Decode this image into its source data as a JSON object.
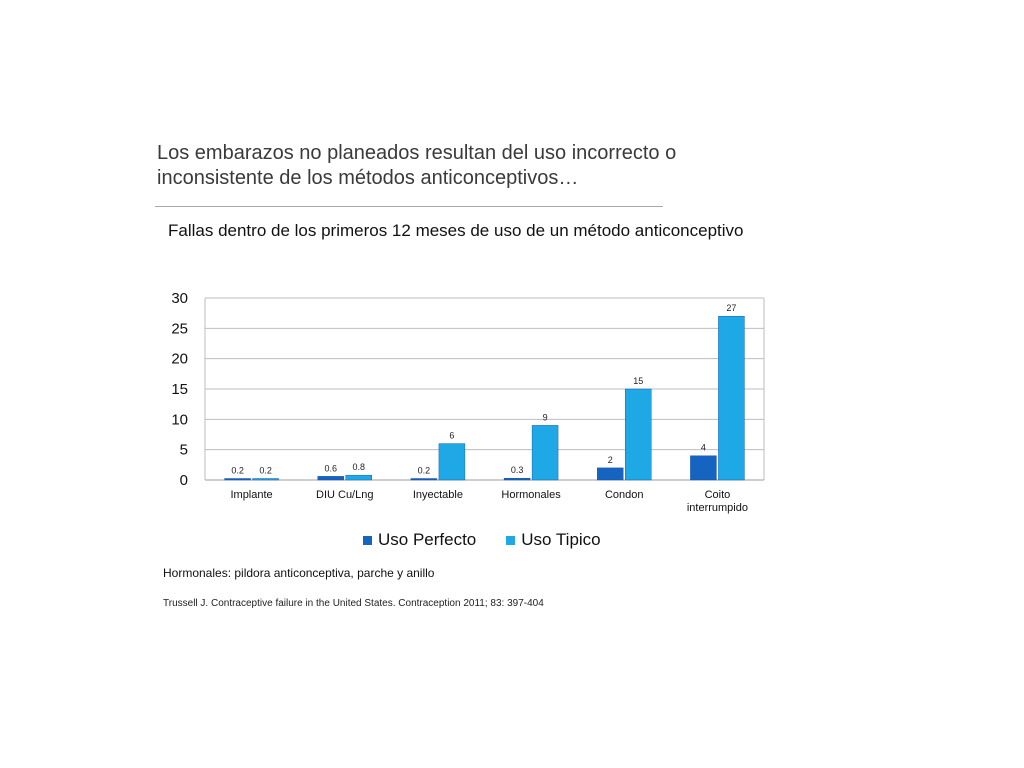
{
  "slide": {
    "heading_line1": "Los embarazos no planeados resultan del uso incorrecto o",
    "heading_line2": "inconsistente de  los métodos anticonceptivos…",
    "note": "Hormonales: pildora anticonceptiva, parche y anillo",
    "citation": "Trussell J. Contraceptive failure in the United States. Contraception 2011; 83: 397-404"
  },
  "chart_data": {
    "type": "bar",
    "title": "Fallas dentro de los primeros 12 meses de uso de un método anticonceptivo",
    "categories": [
      [
        "Implante"
      ],
      [
        "DIU Cu/Lng"
      ],
      [
        "Inyectable"
      ],
      [
        "Hormonales"
      ],
      [
        "Condon"
      ],
      [
        "Coito",
        "interrumpido"
      ]
    ],
    "series": [
      {
        "name": "Uso Perfecto",
        "color": "#1565c0",
        "values": [
          0.2,
          0.6,
          0.2,
          0.3,
          2,
          4
        ],
        "labels": [
          "0.2",
          "0.6",
          "0.2",
          "0.3",
          "2",
          "4"
        ]
      },
      {
        "name": "Uso Tipico",
        "color": "#1ea9e6",
        "values": [
          0.2,
          0.8,
          6,
          9,
          15,
          27
        ],
        "labels": [
          "0.2",
          "0.8",
          "6",
          "9",
          "15",
          "27"
        ]
      }
    ],
    "ylim": [
      0,
      30
    ],
    "yticks": [
      0,
      5,
      10,
      15,
      20,
      25,
      30
    ],
    "xlabel": "",
    "ylabel": "",
    "grid": true,
    "legend_position": "bottom"
  }
}
